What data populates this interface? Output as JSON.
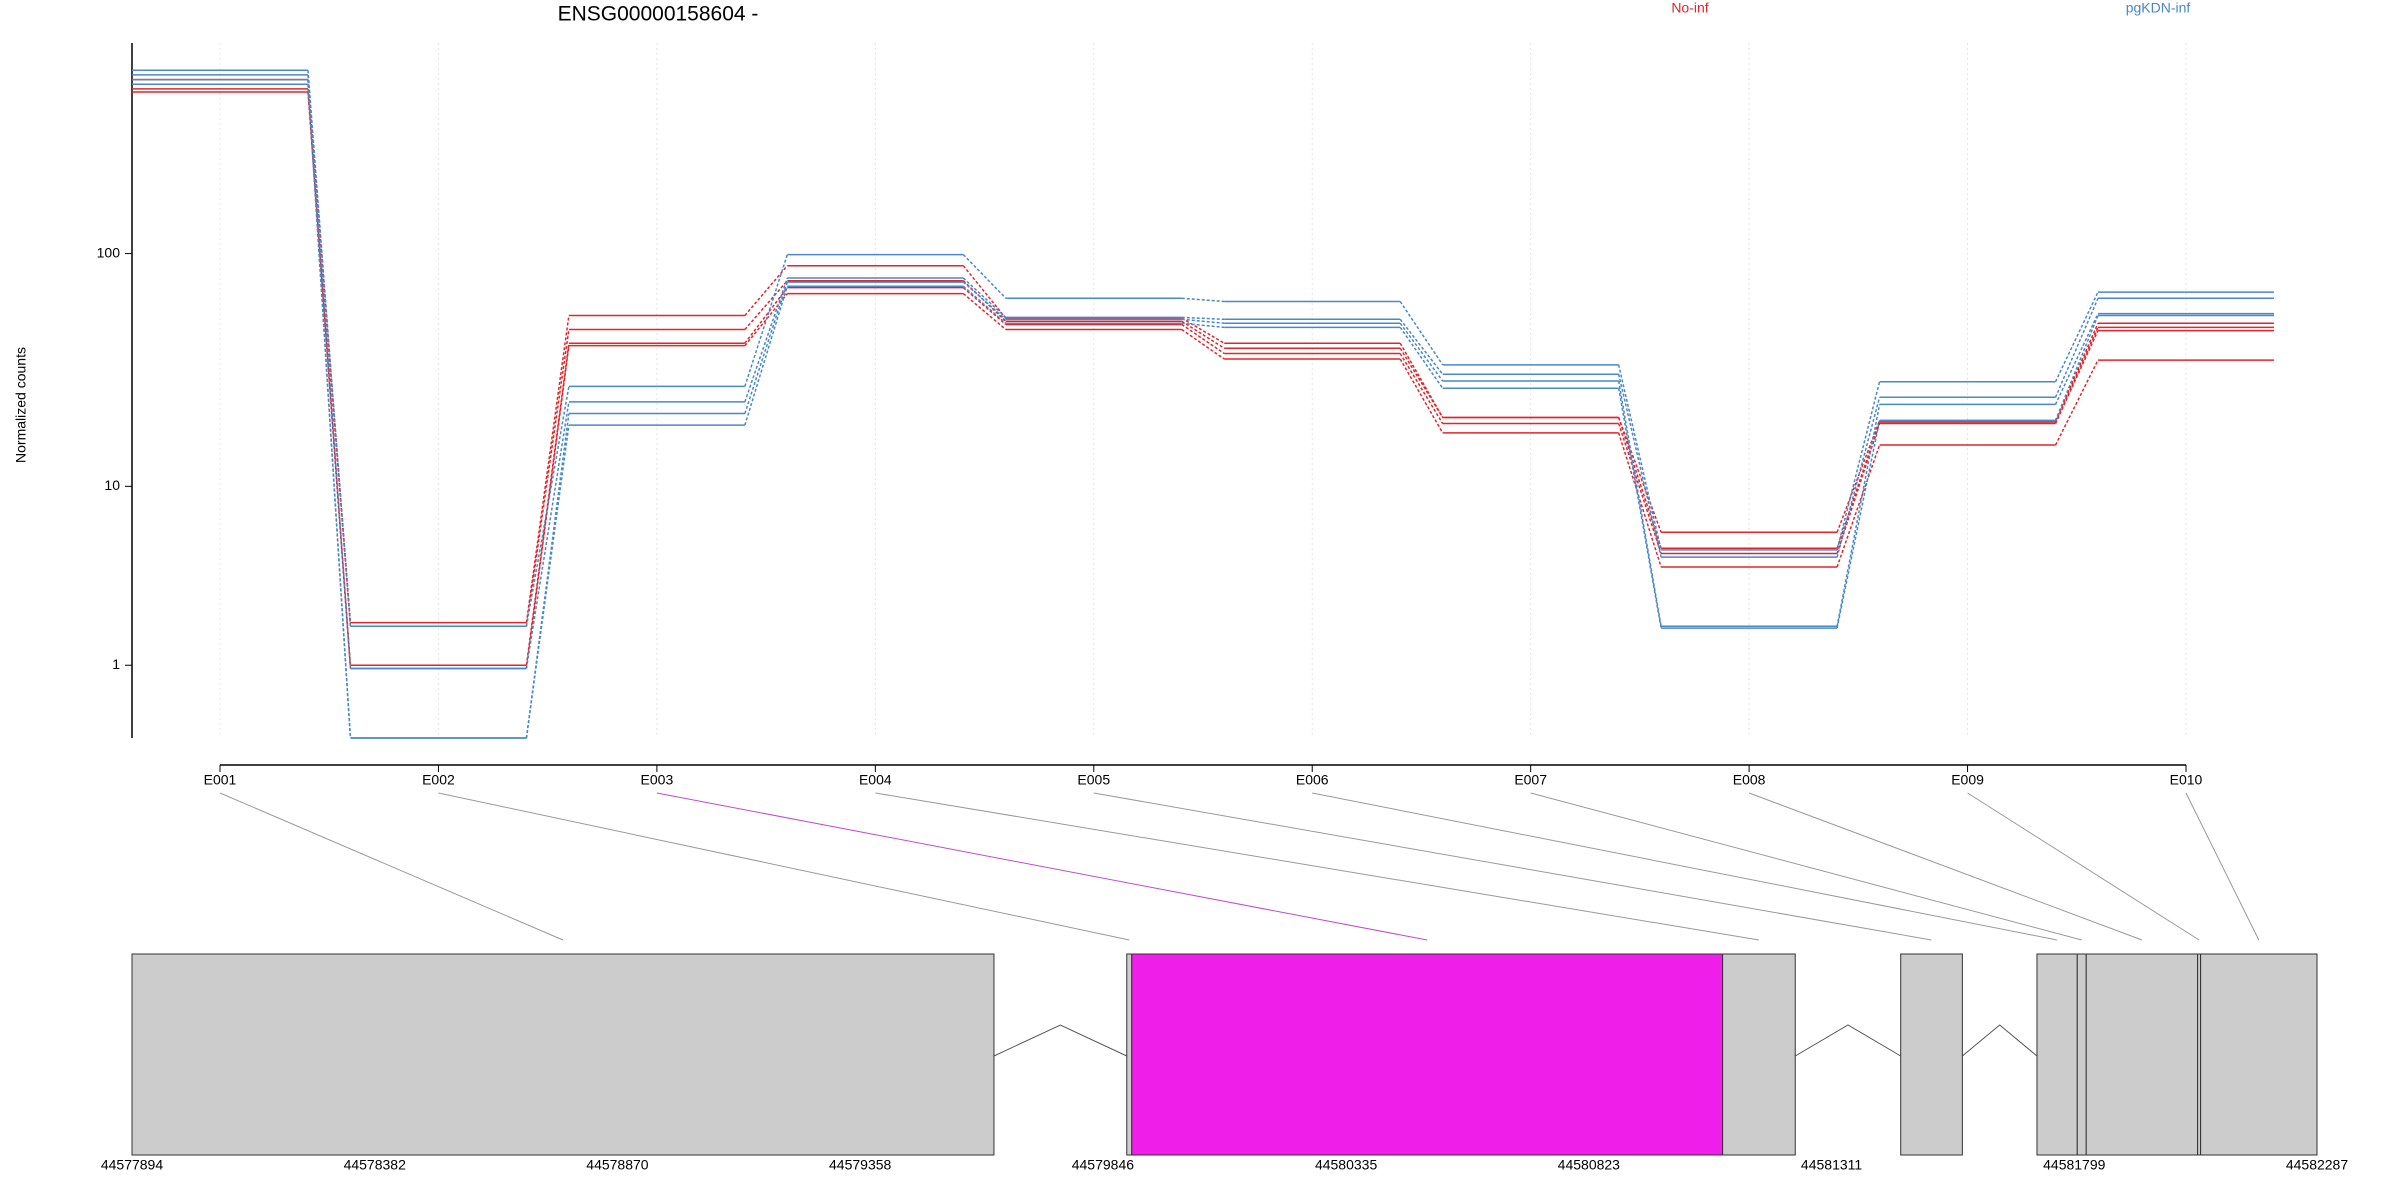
{
  "chart_data": {
    "type": "line",
    "title": "ENSG00000158604 -",
    "y_label": "Normalized counts",
    "yscale": "log1p",
    "ylim": [
      0,
      750
    ],
    "yticks": [
      1,
      10,
      100
    ],
    "grid": true,
    "categories": [
      "E001",
      "E002",
      "E003",
      "E004",
      "E005",
      "E006",
      "E007",
      "E008",
      "E009",
      "E010"
    ],
    "groups": [
      {
        "name": "No-inf",
        "color": "#e0262b",
        "samples": [
          [
            529,
            2.0,
            55,
            89,
            53.6,
            42,
            20.2,
            6.1,
            19.6,
            51
          ],
          [
            506,
            1.9,
            48,
            77,
            52,
            40,
            20.2,
            5.1,
            19.3,
            49
          ],
          [
            484,
            1.0,
            42,
            72,
            50.4,
            38,
            19,
            4.8,
            19,
            47.5
          ],
          [
            470,
            0.94,
            41,
            68,
            48,
            36,
            17.3,
            4.1,
            15.3,
            35.6
          ]
        ]
      },
      {
        "name": "pgKDN-inf",
        "color": "#4a88c7",
        "samples": [
          [
            578,
            1.9,
            27.5,
            99,
            65,
            63,
            34,
            5.0,
            28.8,
            69
          ],
          [
            553,
            0.94,
            23.6,
            79,
            54,
            53,
            31,
            4.6,
            24.7,
            65
          ],
          [
            529,
            0,
            21,
            76,
            53,
            51,
            29,
            1.9,
            23,
            56
          ],
          [
            506,
            0,
            18.7,
            73,
            51,
            49,
            27,
            1.85,
            19.6,
            55
          ]
        ]
      }
    ]
  },
  "gene_model": {
    "xlim": [
      44577894,
      44582287
    ],
    "xticks": [
      44577894,
      44578382,
      44578870,
      44579358,
      44579846,
      44580335,
      44580823,
      44581311,
      44581799,
      44582287
    ],
    "exons": [
      {
        "start": 44577894,
        "end": 44579627,
        "color": "#cccccc",
        "link_color": "#999999"
      },
      {
        "start": 44579894,
        "end": 44579904,
        "color": "#cccccc",
        "link_color": "#999999"
      },
      {
        "start": 44579904,
        "end": 44581092,
        "color": "#f01ee9",
        "link_color": "#c04ccc"
      },
      {
        "start": 44581092,
        "end": 44581238,
        "color": "#cccccc",
        "link_color": "#999999"
      },
      {
        "start": 44581450,
        "end": 44581574,
        "color": "#cccccc",
        "link_color": "#999999"
      },
      {
        "start": 44581724,
        "end": 44581805,
        "color": "#cccccc",
        "link_color": "#999999"
      },
      {
        "start": 44581805,
        "end": 44581823,
        "color": "#cccccc",
        "link_color": "#999999"
      },
      {
        "start": 44581823,
        "end": 44582047,
        "color": "#cccccc",
        "link_color": "#999999"
      },
      {
        "start": 44582047,
        "end": 44582053,
        "color": "#cccccc",
        "link_color": "#999999"
      },
      {
        "start": 44582053,
        "end": 44582287,
        "color": "#cccccc",
        "link_color": "#999999"
      }
    ]
  }
}
